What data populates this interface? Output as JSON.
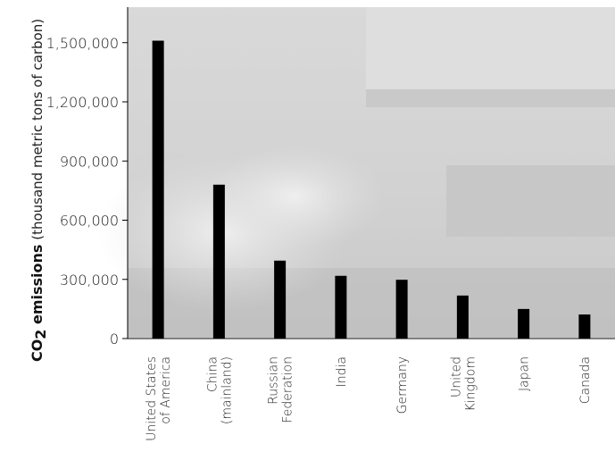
{
  "chart_data": {
    "type": "bar",
    "categories": [
      [
        "United States",
        "of America"
      ],
      [
        "China",
        "(mainland)"
      ],
      [
        "Russian",
        "Federation"
      ],
      [
        "India"
      ],
      [
        "Germany"
      ],
      [
        "United",
        "Kingdom"
      ],
      [
        "Japan"
      ],
      [
        "Canada"
      ]
    ],
    "values": [
      1510000,
      780000,
      395000,
      318000,
      298000,
      218000,
      150000,
      122000
    ],
    "ylabel": {
      "bold": "CO",
      "subscript": "2",
      "bold_rest": " emissions",
      "regular": " (thousand metric tons of carbon)"
    },
    "yticks": [
      {
        "value": 0,
        "label": "0"
      },
      {
        "value": 300000,
        "label": "300,000"
      },
      {
        "value": 600000,
        "label": "600,000"
      },
      {
        "value": 900000,
        "label": "900,000"
      },
      {
        "value": 1200000,
        "label": "1,200,000"
      },
      {
        "value": 1500000,
        "label": "1,500,000"
      }
    ],
    "ylim": [
      0,
      1680000
    ],
    "bar_color": "#000000",
    "background": "grayscale photograph of vehicle exhaust"
  }
}
